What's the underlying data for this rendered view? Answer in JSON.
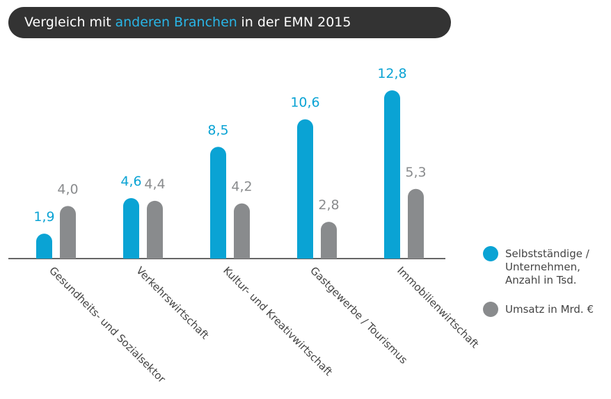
{
  "chart_data": {
    "type": "bar",
    "title_parts": [
      "Vergleich mit",
      "anderen Branchen",
      "in der EMN 2015"
    ],
    "categories": [
      "Gesundheits- und Sozialsektor",
      "Verkehrswirtschaft",
      "Kultur- und Kreativwirtschaft",
      "Gastgewerbe / Tourismus",
      "Immobilienwirtschaft"
    ],
    "series": [
      {
        "name": "Selbstständige / Unternehmen, Anzahl in Tsd.",
        "color": "#0aa3d4",
        "values": [
          1.9,
          4.6,
          8.5,
          10.6,
          12.8
        ],
        "value_labels": [
          "1,9",
          "4,6",
          "8,5",
          "10,6",
          "12,8"
        ]
      },
      {
        "name": "Umsatz in Mrd. €",
        "color": "#898b8d",
        "values": [
          4.0,
          4.4,
          4.2,
          2.8,
          5.3
        ],
        "value_labels": [
          "4,0",
          "4,4",
          "4,2",
          "2,8",
          "5,3"
        ]
      }
    ]
  }
}
